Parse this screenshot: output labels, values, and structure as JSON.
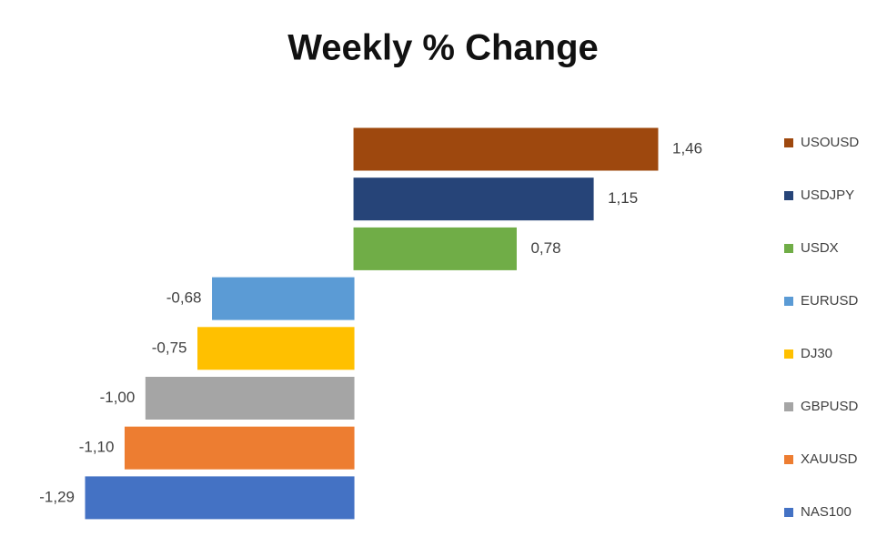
{
  "chart_data": {
    "type": "bar",
    "orientation": "horizontal",
    "title": "Weekly % Change",
    "legend": "right",
    "series": [
      {
        "name": "USOUSD",
        "color": "#9e480e",
        "values": [
          1.46
        ],
        "value_labels": [
          "1,46"
        ]
      },
      {
        "name": "USDJPY",
        "color": "#264478",
        "values": [
          1.15
        ],
        "value_labels": [
          "1,15"
        ]
      },
      {
        "name": "USDX",
        "color": "#70ad47",
        "values": [
          0.78
        ],
        "value_labels": [
          "0,78"
        ]
      },
      {
        "name": "EURUSD",
        "color": "#5b9bd5",
        "values": [
          -0.68
        ],
        "value_labels": [
          "-0,68"
        ]
      },
      {
        "name": "DJ30",
        "color": "#ffc000",
        "values": [
          -0.75
        ],
        "value_labels": [
          "-0,75"
        ]
      },
      {
        "name": "GBPUSD",
        "color": "#a5a5a5",
        "values": [
          -1.0
        ],
        "value_labels": [
          "-1,00"
        ]
      },
      {
        "name": "XAUUSD",
        "color": "#ed7d31",
        "values": [
          -1.1
        ],
        "value_labels": [
          "-1,10"
        ]
      },
      {
        "name": "NAS100",
        "color": "#4472c4",
        "values": [
          -1.29
        ],
        "value_labels": [
          "-1,29"
        ]
      }
    ]
  }
}
